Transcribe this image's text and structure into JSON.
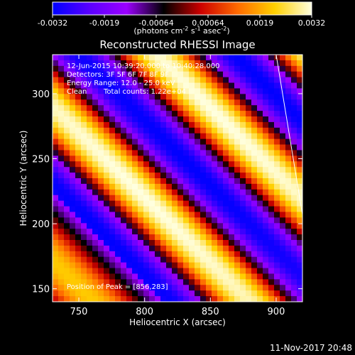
{
  "chart_data": {
    "type": "heatmap",
    "title": "Reconstructed RHESSI Image",
    "xlabel": "Heliocentric X (arcsec)",
    "ylabel": "Heliocentric Y (arcsec)",
    "xlim": [
      730,
      920
    ],
    "ylim": [
      140,
      330
    ],
    "x_ticks": [
      750,
      800,
      850,
      900
    ],
    "y_ticks": [
      150,
      200,
      250,
      300
    ],
    "x_tick_labels": [
      "750",
      "800",
      "850",
      "900"
    ],
    "y_tick_labels": [
      "150",
      "200",
      "250",
      "300"
    ],
    "colorbar": {
      "min": -0.0032,
      "max": 0.0032,
      "tick_labels": [
        "-0.0032",
        "-0.0019",
        "-0.00064",
        "0.00064",
        "0.0019",
        "0.0032"
      ],
      "unit_text": "(photons cm",
      "unit_sup1": "-2",
      "unit_mid": " s",
      "unit_sup2": "-1",
      "unit_mid2": " asec",
      "unit_sup3": "-2",
      "unit_end": ")",
      "colormap": [
        "#0000ff",
        "#5a00ff",
        "#9b00ff",
        "#000000",
        "#cc0000",
        "#ff6a00",
        "#ffd000",
        "#ffffe0"
      ]
    },
    "annotations": {
      "date_line": "12-Jun-2015 10:39:20.000 to 10:40:28.000",
      "detectors": "Detectors: 3F 5F 6F 7F 8F 9F",
      "energy": "Energy Range: 12.0 - 25.0 keV",
      "clean": "Clean",
      "total_counts": "Total counts: 1.22e+04",
      "peak": "Position of Peak = [856,283]"
    },
    "peak": {
      "x": 856,
      "y": 283
    },
    "limb_line": [
      [
        900,
        330
      ],
      [
        920,
        207
      ]
    ]
  },
  "footer": {
    "timestamp": "11-Nov-2017 20:48"
  }
}
